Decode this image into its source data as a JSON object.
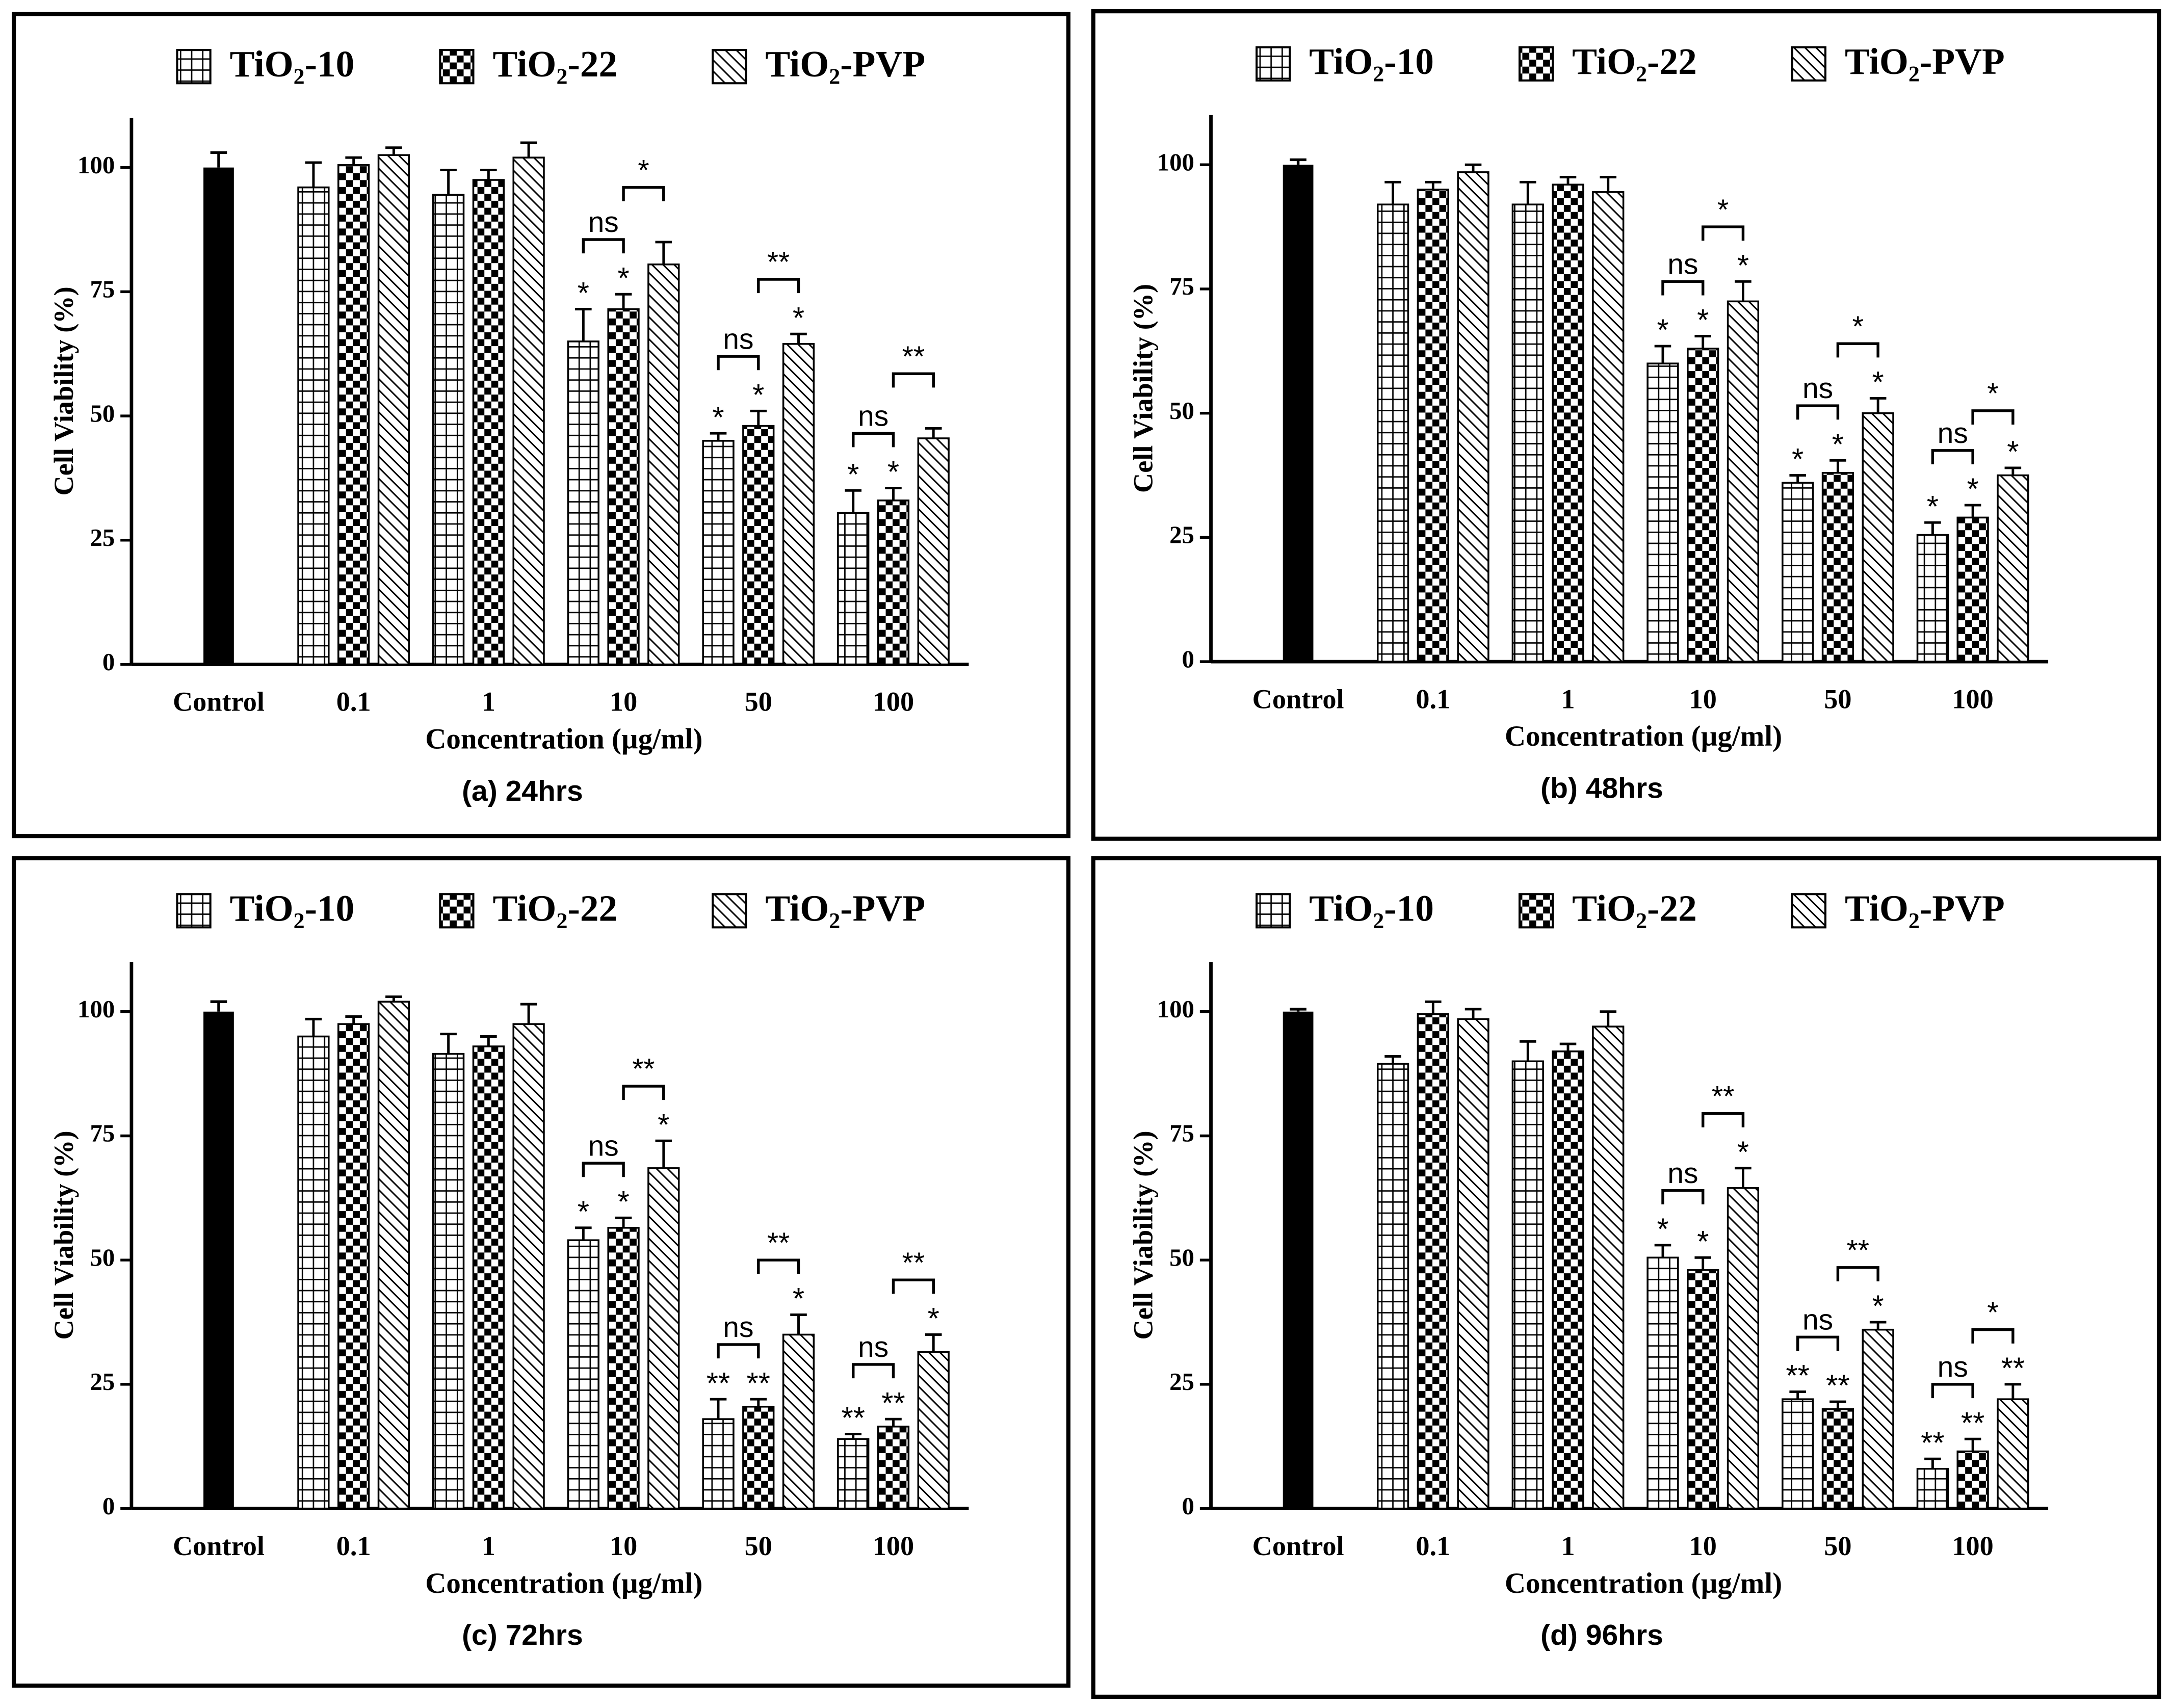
{
  "chart_data": [
    {
      "type": "bar",
      "caption": "(a) 24hrs",
      "x_label": "Concentration (µg/ml)",
      "y_label": "Cell Viability (%)",
      "categories": [
        "Control",
        "0.1",
        "1",
        "10",
        "50",
        "100"
      ],
      "control_value": 100,
      "control_error": 3,
      "control_color": "#000000",
      "ylim": [
        0,
        110
      ],
      "yticks": [
        0,
        25,
        50,
        75,
        100
      ],
      "series": [
        {
          "name": "TiO₂-10",
          "pattern": "grid",
          "color": "#000000",
          "values": [
            null,
            96,
            94.5,
            65,
            45,
            30.5
          ],
          "errors": [
            null,
            5,
            5,
            6.5,
            1.5,
            4.5
          ],
          "significance": [
            null,
            null,
            null,
            "*",
            "*",
            "*"
          ]
        },
        {
          "name": "TiO₂-22",
          "pattern": "checker",
          "color": "#000000",
          "values": [
            null,
            100.5,
            97.5,
            71.5,
            48,
            33
          ],
          "errors": [
            null,
            1.5,
            2,
            3,
            3,
            2.5
          ],
          "significance": [
            null,
            null,
            null,
            "*",
            "*",
            "*"
          ]
        },
        {
          "name": "TiO₂-PVP",
          "pattern": "hatch",
          "color": "#000000",
          "values": [
            null,
            102.5,
            102,
            80.5,
            64.5,
            45.5
          ],
          "errors": [
            null,
            1.5,
            3,
            4.5,
            2,
            2
          ],
          "significance": [
            null,
            null,
            null,
            null,
            "*",
            null
          ]
        }
      ],
      "brackets": [
        {
          "category": 3,
          "pair": [
            0,
            1
          ],
          "label": "ns"
        },
        {
          "category": 3,
          "pair": [
            1,
            2
          ],
          "label": "*"
        },
        {
          "category": 4,
          "pair": [
            0,
            1
          ],
          "label": "ns"
        },
        {
          "category": 4,
          "pair": [
            1,
            2
          ],
          "label": "**"
        },
        {
          "category": 5,
          "pair": [
            0,
            1
          ],
          "label": "ns"
        },
        {
          "category": 5,
          "pair": [
            1,
            2
          ],
          "label": "**"
        }
      ]
    },
    {
      "type": "bar",
      "caption": "(b) 48hrs",
      "x_label": "Concentration (µg/ml)",
      "y_label": "Cell Viability (%)",
      "categories": [
        "Control",
        "0.1",
        "1",
        "10",
        "50",
        "100"
      ],
      "control_value": 100,
      "control_error": 1,
      "control_color": "#000000",
      "ylim": [
        0,
        110
      ],
      "yticks": [
        0,
        25,
        50,
        75,
        100
      ],
      "series": [
        {
          "name": "TiO₂-10",
          "pattern": "grid",
          "color": "#000000",
          "values": [
            null,
            92,
            92,
            60,
            36,
            25.5
          ],
          "errors": [
            null,
            4.5,
            4.5,
            3.5,
            1.5,
            2.5
          ],
          "significance": [
            null,
            null,
            null,
            "*",
            "*",
            "*"
          ]
        },
        {
          "name": "TiO₂-22",
          "pattern": "checker",
          "color": "#000000",
          "values": [
            null,
            95,
            96,
            63,
            38,
            29
          ],
          "errors": [
            null,
            1.5,
            1.5,
            2.5,
            2.5,
            2.5
          ],
          "significance": [
            null,
            null,
            null,
            "*",
            "*",
            "*"
          ]
        },
        {
          "name": "TiO₂-PVP",
          "pattern": "hatch",
          "color": "#000000",
          "values": [
            null,
            98.5,
            94.5,
            72.5,
            50,
            37.5
          ],
          "errors": [
            null,
            1.5,
            3,
            4,
            3,
            1.5
          ],
          "significance": [
            null,
            null,
            null,
            "*",
            "*",
            "*"
          ]
        }
      ],
      "brackets": [
        {
          "category": 3,
          "pair": [
            0,
            1
          ],
          "label": "ns"
        },
        {
          "category": 3,
          "pair": [
            1,
            2
          ],
          "label": "*"
        },
        {
          "category": 4,
          "pair": [
            0,
            1
          ],
          "label": "ns"
        },
        {
          "category": 4,
          "pair": [
            1,
            2
          ],
          "label": "*"
        },
        {
          "category": 5,
          "pair": [
            0,
            1
          ],
          "label": "ns"
        },
        {
          "category": 5,
          "pair": [
            1,
            2
          ],
          "label": "*"
        }
      ]
    },
    {
      "type": "bar",
      "caption": "(c) 72hrs",
      "x_label": "Concentration (µg/ml)",
      "y_label": "Cell Viability (%)",
      "categories": [
        "Control",
        "0.1",
        "1",
        "10",
        "50",
        "100"
      ],
      "control_value": 100,
      "control_error": 2,
      "control_color": "#000000",
      "ylim": [
        0,
        110
      ],
      "yticks": [
        0,
        25,
        50,
        75,
        100
      ],
      "series": [
        {
          "name": "TiO₂-10",
          "pattern": "grid",
          "color": "#000000",
          "values": [
            null,
            95,
            91.5,
            54,
            18,
            14
          ],
          "errors": [
            null,
            3.5,
            4,
            2.5,
            4,
            1
          ],
          "significance": [
            null,
            null,
            null,
            "*",
            "**",
            "**"
          ]
        },
        {
          "name": "TiO₂-22",
          "pattern": "checker",
          "color": "#000000",
          "values": [
            null,
            97.5,
            93,
            56.5,
            20.5,
            16.5
          ],
          "errors": [
            null,
            1.5,
            2,
            2,
            1.5,
            1.5
          ],
          "significance": [
            null,
            null,
            null,
            "*",
            "**",
            "**"
          ]
        },
        {
          "name": "TiO₂-PVP",
          "pattern": "hatch",
          "color": "#000000",
          "values": [
            null,
            102,
            97.5,
            68.5,
            35,
            31.5
          ],
          "errors": [
            null,
            1,
            4,
            5.5,
            4,
            3.5
          ],
          "significance": [
            null,
            null,
            null,
            "*",
            "*",
            "*"
          ]
        }
      ],
      "brackets": [
        {
          "category": 3,
          "pair": [
            0,
            1
          ],
          "label": "ns"
        },
        {
          "category": 3,
          "pair": [
            1,
            2
          ],
          "label": "**"
        },
        {
          "category": 4,
          "pair": [
            0,
            1
          ],
          "label": "ns"
        },
        {
          "category": 4,
          "pair": [
            1,
            2
          ],
          "label": "**"
        },
        {
          "category": 5,
          "pair": [
            0,
            1
          ],
          "label": "ns"
        },
        {
          "category": 5,
          "pair": [
            1,
            2
          ],
          "label": "**"
        }
      ]
    },
    {
      "type": "bar",
      "caption": "(d) 96hrs",
      "x_label": "Concentration (µg/ml)",
      "y_label": "Cell Viability (%)",
      "categories": [
        "Control",
        "0.1",
        "1",
        "10",
        "50",
        "100"
      ],
      "control_value": 100,
      "control_error": 0.5,
      "control_color": "#000000",
      "ylim": [
        0,
        110
      ],
      "yticks": [
        0,
        25,
        50,
        75,
        100
      ],
      "series": [
        {
          "name": "TiO₂-10",
          "pattern": "grid",
          "color": "#000000",
          "values": [
            null,
            89.5,
            90,
            50.5,
            22,
            8
          ],
          "errors": [
            null,
            1.5,
            4,
            2.5,
            1.5,
            2
          ],
          "significance": [
            null,
            null,
            null,
            "*",
            "**",
            "**"
          ]
        },
        {
          "name": "TiO₂-22",
          "pattern": "checker",
          "color": "#000000",
          "values": [
            null,
            99.5,
            92,
            48,
            20,
            11.5
          ],
          "errors": [
            null,
            2.5,
            1.5,
            2.5,
            1.5,
            2.5
          ],
          "significance": [
            null,
            null,
            null,
            "*",
            "**",
            "**"
          ]
        },
        {
          "name": "TiO₂-PVP",
          "pattern": "hatch",
          "color": "#000000",
          "values": [
            null,
            98.5,
            97,
            64.5,
            36,
            22
          ],
          "errors": [
            null,
            2,
            3,
            4,
            1.5,
            3
          ],
          "significance": [
            null,
            null,
            null,
            "*",
            "*",
            "**"
          ]
        }
      ],
      "brackets": [
        {
          "category": 3,
          "pair": [
            0,
            1
          ],
          "label": "ns"
        },
        {
          "category": 3,
          "pair": [
            1,
            2
          ],
          "label": "**"
        },
        {
          "category": 4,
          "pair": [
            0,
            1
          ],
          "label": "ns"
        },
        {
          "category": 4,
          "pair": [
            1,
            2
          ],
          "label": "**"
        },
        {
          "category": 5,
          "pair": [
            0,
            1
          ],
          "label": "ns"
        },
        {
          "category": 5,
          "pair": [
            1,
            2
          ],
          "label": "*"
        }
      ]
    }
  ]
}
